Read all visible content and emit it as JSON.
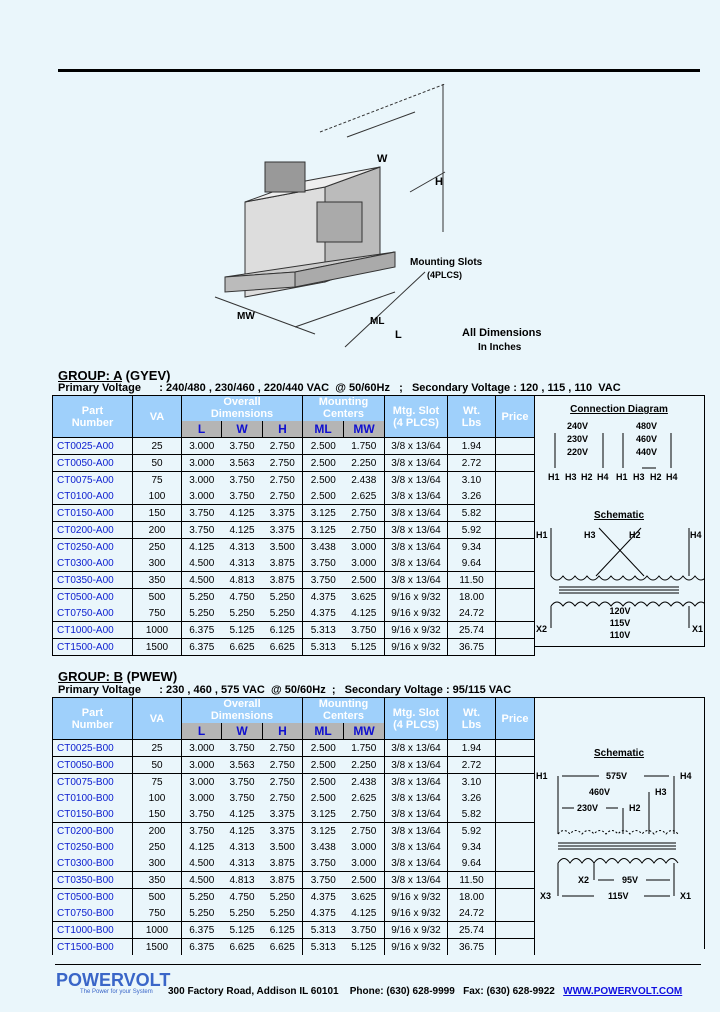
{
  "drawing": {
    "labels": {
      "w": "W",
      "h": "H",
      "ml": "ML",
      "l": "L",
      "mw": "MW",
      "slots1": "Mounting Slots",
      "slots2": "(4PLCS)",
      "dims1": "All Dimensions",
      "dims2": "In Inches"
    }
  },
  "headers": {
    "part": [
      "Part",
      "Number"
    ],
    "va": "VA",
    "overall": [
      "Overall",
      "Dimensions"
    ],
    "mounting": [
      "Mounting",
      "Centers"
    ],
    "slot": [
      "Mtg. Slot",
      "(4 PLCS)"
    ],
    "wt": [
      "Wt.",
      "Lbs"
    ],
    "price": "Price",
    "L": "L",
    "W": "W",
    "H": "H",
    "ML": "ML",
    "MW": "MW"
  },
  "groupA": {
    "title_u": "GROUP: A",
    "title_rest": " (GYEV)",
    "primary": "Primary Voltage      : 240/480 , 230/460 , 220/440 VAC  @ 50/60Hz   ;   Secondary Voltage : 120 , 115 , 110  VAC",
    "rows": [
      [
        "CT0025-A00",
        "25",
        "3.000",
        "3.750",
        "2.750",
        "2.500",
        "1.750",
        "3/8 x 13/64",
        "1.94",
        ""
      ],
      [
        "CT0050-A00",
        "50",
        "3.000",
        "3.563",
        "2.750",
        "2.500",
        "2.250",
        "3/8 x 13/64",
        "2.72",
        ""
      ],
      [
        "CT0075-A00",
        "75",
        "3.000",
        "3.750",
        "2.750",
        "2.500",
        "2.438",
        "3/8 x 13/64",
        "3.10",
        ""
      ],
      [
        "CT0100-A00",
        "100",
        "3.000",
        "3.750",
        "2.750",
        "2.500",
        "2.625",
        "3/8 x 13/64",
        "3.26",
        ""
      ],
      [
        "CT0150-A00",
        "150",
        "3.750",
        "4.125",
        "3.375",
        "3.125",
        "2.750",
        "3/8 x 13/64",
        "5.82",
        ""
      ],
      [
        "CT0200-A00",
        "200",
        "3.750",
        "4.125",
        "3.375",
        "3.125",
        "2.750",
        "3/8 x 13/64",
        "5.92",
        ""
      ],
      [
        "CT0250-A00",
        "250",
        "4.125",
        "4.313",
        "3.500",
        "3.438",
        "3.000",
        "3/8 x 13/64",
        "9.34",
        ""
      ],
      [
        "CT0300-A00",
        "300",
        "4.500",
        "4.313",
        "3.875",
        "3.750",
        "3.000",
        "3/8 x 13/64",
        "9.64",
        ""
      ],
      [
        "CT0350-A00",
        "350",
        "4.500",
        "4.813",
        "3.875",
        "3.750",
        "2.500",
        "3/8 x 13/64",
        "11.50",
        ""
      ],
      [
        "CT0500-A00",
        "500",
        "5.250",
        "4.750",
        "5.250",
        "4.375",
        "3.625",
        "9/16 x 9/32",
        "18.00",
        ""
      ],
      [
        "CT0750-A00",
        "750",
        "5.250",
        "5.250",
        "5.250",
        "4.375",
        "4.125",
        "9/16 x 9/32",
        "24.72",
        ""
      ],
      [
        "CT1000-A00",
        "1000",
        "6.375",
        "5.125",
        "6.125",
        "5.313",
        "3.750",
        "9/16 x 9/32",
        "25.74",
        ""
      ],
      [
        "CT1500-A00",
        "1500",
        "6.375",
        "6.625",
        "6.625",
        "5.313",
        "5.125",
        "9/16 x 9/32",
        "36.75",
        ""
      ]
    ],
    "connection": {
      "title": "Connection Diagram",
      "low": [
        "240V",
        "230V",
        "220V"
      ],
      "high": [
        "480V",
        "460V",
        "440V"
      ],
      "terms": [
        "H1",
        "H3",
        "H2",
        "H4",
        "H1",
        "H3",
        "H2",
        "H4"
      ]
    },
    "schematic": {
      "title": "Schematic",
      "h1": "H1",
      "h3": "H3",
      "h2": "H2",
      "h4": "H4",
      "x2": "X2",
      "x1": "X1",
      "sec": [
        "120V",
        "115V",
        "110V"
      ]
    }
  },
  "groupB": {
    "title_u": "GROUP: B",
    "title_rest": " (PWEW)",
    "primary": "Primary Voltage      : 230 , 460 , 575 VAC  @ 50/60Hz  ;   Secondary Voltage : 95/115 VAC",
    "rows": [
      [
        "CT0025-B00",
        "25",
        "3.000",
        "3.750",
        "2.750",
        "2.500",
        "1.750",
        "3/8 x 13/64",
        "1.94",
        ""
      ],
      [
        "CT0050-B00",
        "50",
        "3.000",
        "3.563",
        "2.750",
        "2.500",
        "2.250",
        "3/8 x 13/64",
        "2.72",
        ""
      ],
      [
        "CT0075-B00",
        "75",
        "3.000",
        "3.750",
        "2.750",
        "2.500",
        "2.438",
        "3/8 x 13/64",
        "3.10",
        ""
      ],
      [
        "CT0100-B00",
        "100",
        "3.000",
        "3.750",
        "2.750",
        "2.500",
        "2.625",
        "3/8 x 13/64",
        "3.26",
        ""
      ],
      [
        "CT0150-B00",
        "150",
        "3.750",
        "4.125",
        "3.375",
        "3.125",
        "2.750",
        "3/8 x 13/64",
        "5.82",
        ""
      ],
      [
        "CT0200-B00",
        "200",
        "3.750",
        "4.125",
        "3.375",
        "3.125",
        "2.750",
        "3/8 x 13/64",
        "5.92",
        ""
      ],
      [
        "CT0250-B00",
        "250",
        "4.125",
        "4.313",
        "3.500",
        "3.438",
        "3.000",
        "3/8 x 13/64",
        "9.34",
        ""
      ],
      [
        "CT0300-B00",
        "300",
        "4.500",
        "4.313",
        "3.875",
        "3.750",
        "3.000",
        "3/8 x 13/64",
        "9.64",
        ""
      ],
      [
        "CT0350-B00",
        "350",
        "4.500",
        "4.813",
        "3.875",
        "3.750",
        "2.500",
        "3/8 x 13/64",
        "11.50",
        ""
      ],
      [
        "CT0500-B00",
        "500",
        "5.250",
        "4.750",
        "5.250",
        "4.375",
        "3.625",
        "9/16 x 9/32",
        "18.00",
        ""
      ],
      [
        "CT0750-B00",
        "750",
        "5.250",
        "5.250",
        "5.250",
        "4.375",
        "4.125",
        "9/16 x 9/32",
        "24.72",
        ""
      ],
      [
        "CT1000-B00",
        "1000",
        "6.375",
        "5.125",
        "6.125",
        "5.313",
        "3.750",
        "9/16 x 9/32",
        "25.74",
        ""
      ],
      [
        "CT1500-B00",
        "1500",
        "6.375",
        "6.625",
        "6.625",
        "5.313",
        "5.125",
        "9/16 x 9/32",
        "36.75",
        ""
      ]
    ],
    "schematic": {
      "title": "Schematic",
      "h1": "H1",
      "h4": "H4",
      "h3": "H3",
      "h2": "H2",
      "v575": "575V",
      "v460": "460V",
      "v230": "230V",
      "x2": "X2",
      "x1": "X1",
      "x3": "X3",
      "v95": "95V",
      "v115": "115V"
    }
  },
  "footer": {
    "logo_name": "POWERVOLT",
    "logo_tagline": "The Power for your System",
    "address": "300 Factory Road, Addison IL 60101    Phone: (630) 628-9999   Fax: (630) 628-9922   ",
    "website": "WWW.POWERVOLT.COM"
  },
  "colors": {
    "background": "#eaf6fb",
    "header": "#9fd0fb",
    "subheader": "#b5b5b5",
    "link": "#0a1ccf",
    "logo": "#3a66c8"
  }
}
